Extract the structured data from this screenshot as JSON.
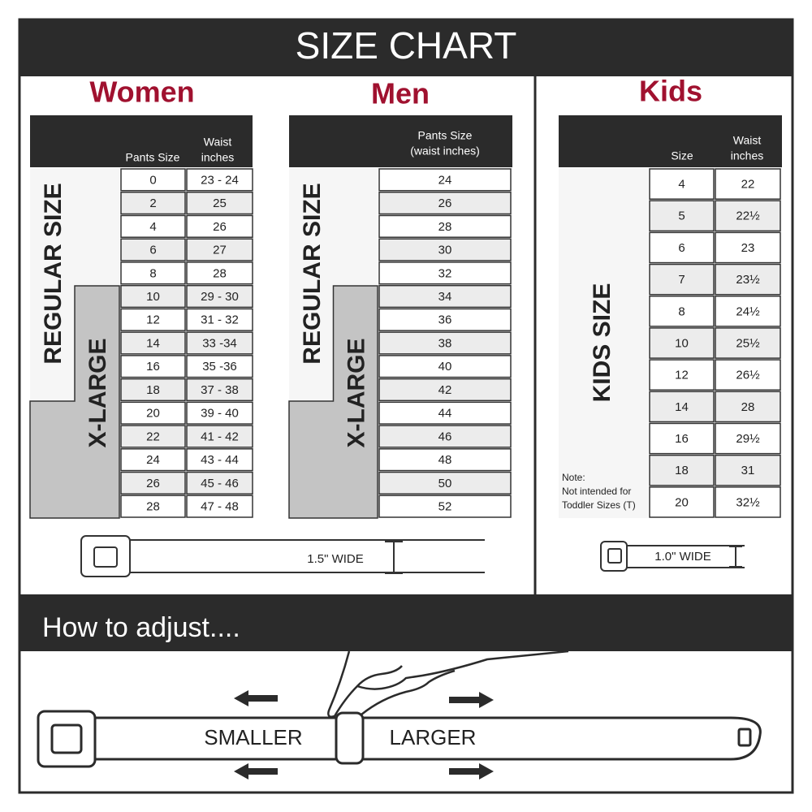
{
  "title": "SIZE CHART",
  "women": {
    "heading": "Women",
    "columns": [
      [
        "Pants Size"
      ],
      [
        "Waist",
        "inches"
      ]
    ],
    "regular_label": "REGULAR SIZE",
    "xlarge_label": "X-LARGE",
    "rows": [
      [
        "0",
        "23 - 24"
      ],
      [
        "2",
        "25"
      ],
      [
        "4",
        "26"
      ],
      [
        "6",
        "27"
      ],
      [
        "8",
        "28"
      ],
      [
        "10",
        "29 - 30"
      ],
      [
        "12",
        "31 - 32"
      ],
      [
        "14",
        "33 -34"
      ],
      [
        "16",
        "35 -36"
      ],
      [
        "18",
        "37 - 38"
      ],
      [
        "20",
        "39 - 40"
      ],
      [
        "22",
        "41 - 42"
      ],
      [
        "24",
        "43 - 44"
      ],
      [
        "26",
        "45 - 46"
      ],
      [
        "28",
        "47 - 48"
      ]
    ],
    "belt_width": "1.5\" WIDE"
  },
  "men": {
    "heading": "Men",
    "columns": [
      [
        "Pants Size",
        "(waist inches)"
      ]
    ],
    "regular_label": "REGULAR SIZE",
    "xlarge_label": "X-LARGE",
    "rows": [
      [
        "24"
      ],
      [
        "26"
      ],
      [
        "28"
      ],
      [
        "30"
      ],
      [
        "32"
      ],
      [
        "34"
      ],
      [
        "36"
      ],
      [
        "38"
      ],
      [
        "40"
      ],
      [
        "42"
      ],
      [
        "44"
      ],
      [
        "46"
      ],
      [
        "48"
      ],
      [
        "50"
      ],
      [
        "52"
      ]
    ]
  },
  "kids": {
    "heading": "Kids",
    "columns": [
      [
        "Size"
      ],
      [
        "Waist",
        "inches"
      ]
    ],
    "size_label": "KIDS SIZE",
    "note": [
      "Note:",
      "Not intended for",
      "Toddler Sizes (T)"
    ],
    "rows": [
      [
        "4",
        "22"
      ],
      [
        "5",
        "22½"
      ],
      [
        "6",
        "23"
      ],
      [
        "7",
        "23½"
      ],
      [
        "8",
        "24½"
      ],
      [
        "10",
        "25½"
      ],
      [
        "12",
        "26½"
      ],
      [
        "14",
        "28"
      ],
      [
        "16",
        "29½"
      ],
      [
        "18",
        "31"
      ],
      [
        "20",
        "32½"
      ]
    ],
    "belt_width": "1.0\" WIDE"
  },
  "adjust": {
    "title": "How to adjust....",
    "smaller": "SMALLER",
    "larger": "LARGER"
  }
}
